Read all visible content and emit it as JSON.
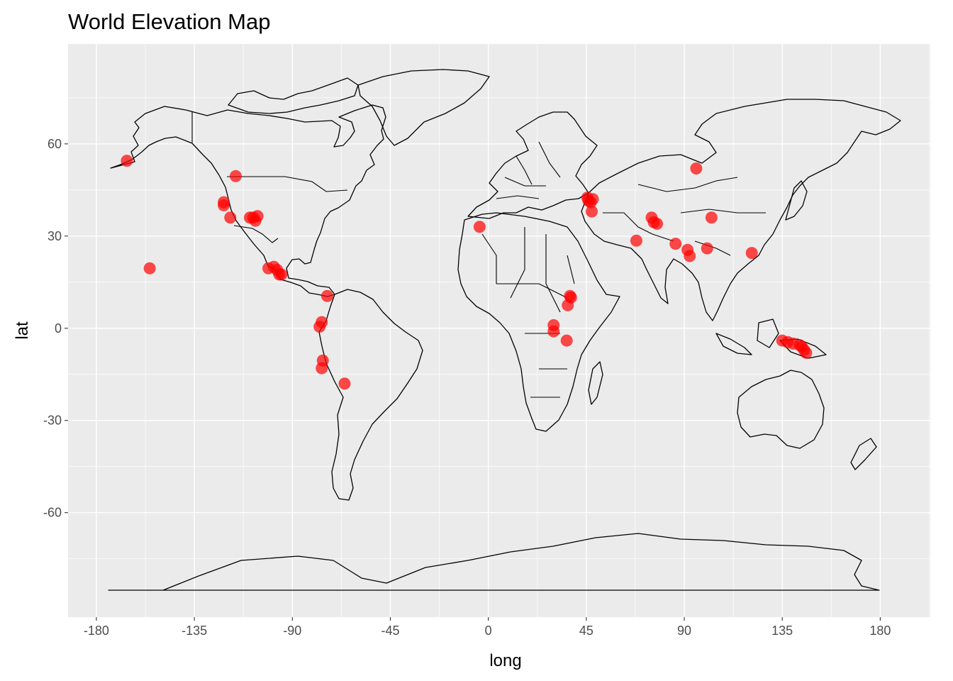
{
  "chart_data": {
    "type": "scatter",
    "title": "World Elevation Map",
    "xlabel": "long",
    "ylabel": "lat",
    "xlim": [
      -193,
      203
    ],
    "ylim": [
      -94,
      92.5
    ],
    "x_ticks": [
      -180,
      -135,
      -90,
      -45,
      0,
      45,
      90,
      135,
      180
    ],
    "x_tick_labels": [
      "-180",
      "-135",
      "-90",
      "-45",
      "0",
      "45",
      "90",
      "135",
      "180"
    ],
    "y_ticks": [
      -60,
      -30,
      0,
      30,
      60
    ],
    "y_tick_labels": [
      "-60",
      "-30",
      "0",
      "30",
      "60"
    ],
    "grid": true,
    "panel_background": "#ebebeb",
    "point_color": "#ff0000",
    "point_alpha": 0.7,
    "points": [
      {
        "x": -166,
        "y": 54.5
      },
      {
        "x": -155.5,
        "y": 19.5
      },
      {
        "x": -116,
        "y": 49.5
      },
      {
        "x": -121.5,
        "y": 41
      },
      {
        "x": -121.5,
        "y": 40
      },
      {
        "x": -118.5,
        "y": 36
      },
      {
        "x": -109.5,
        "y": 36
      },
      {
        "x": -108,
        "y": 36
      },
      {
        "x": -107,
        "y": 35
      },
      {
        "x": -106,
        "y": 36.5
      },
      {
        "x": -101,
        "y": 19.5
      },
      {
        "x": -98.5,
        "y": 20
      },
      {
        "x": -97,
        "y": 19
      },
      {
        "x": -96,
        "y": 17.5
      },
      {
        "x": -95,
        "y": 17.5
      },
      {
        "x": -74,
        "y": 10.5
      },
      {
        "x": -76.5,
        "y": 2
      },
      {
        "x": -77.5,
        "y": 0.5
      },
      {
        "x": -76,
        "y": -10.5
      },
      {
        "x": -76.5,
        "y": -13
      },
      {
        "x": -66,
        "y": -18
      },
      {
        "x": -4,
        "y": 33
      },
      {
        "x": 30,
        "y": 1
      },
      {
        "x": 30,
        "y": -1
      },
      {
        "x": 36,
        "y": -4
      },
      {
        "x": 36.5,
        "y": 7.5
      },
      {
        "x": 37.5,
        "y": 10.5
      },
      {
        "x": 38,
        "y": 10
      },
      {
        "x": 45.5,
        "y": 42.5
      },
      {
        "x": 46,
        "y": 41.5
      },
      {
        "x": 47,
        "y": 41
      },
      {
        "x": 48,
        "y": 42
      },
      {
        "x": 47.5,
        "y": 38
      },
      {
        "x": 68,
        "y": 28.5
      },
      {
        "x": 75,
        "y": 36
      },
      {
        "x": 76,
        "y": 34.5
      },
      {
        "x": 77.5,
        "y": 34
      },
      {
        "x": 86,
        "y": 27.5
      },
      {
        "x": 91.5,
        "y": 25.5
      },
      {
        "x": 92.5,
        "y": 23.5
      },
      {
        "x": 95.5,
        "y": 52
      },
      {
        "x": 100.5,
        "y": 26
      },
      {
        "x": 102.5,
        "y": 36
      },
      {
        "x": 121,
        "y": 24.5
      },
      {
        "x": 135,
        "y": -4
      },
      {
        "x": 137.5,
        "y": -4.5
      },
      {
        "x": 140,
        "y": -5
      },
      {
        "x": 143,
        "y": -5.5
      },
      {
        "x": 144,
        "y": -6
      },
      {
        "x": 145,
        "y": -7
      },
      {
        "x": 146,
        "y": -8
      }
    ]
  }
}
